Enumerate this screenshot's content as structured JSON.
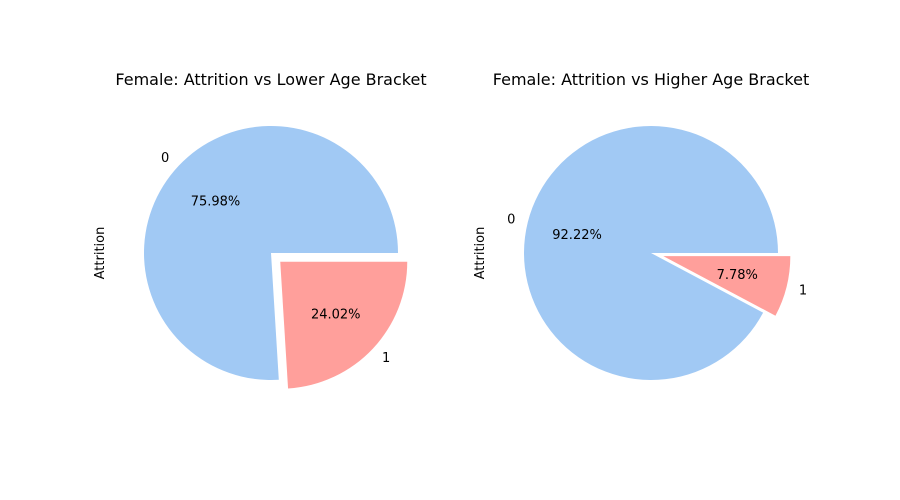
{
  "chart_data": [
    {
      "type": "pie",
      "title": "Female: Attrition vs Lower Age Bracket",
      "ylabel": "Attrition",
      "labels": [
        "0",
        "1"
      ],
      "values": [
        75.98,
        24.02
      ],
      "pct_labels": [
        "75.98%",
        "24.02%"
      ],
      "explode": [
        0,
        0.1
      ],
      "colors": [
        "#a1c9f4",
        "#ff9f9b"
      ]
    },
    {
      "type": "pie",
      "title": "Female: Attrition vs Higher Age Bracket",
      "ylabel": "Attrition",
      "labels": [
        "0",
        "1"
      ],
      "values": [
        92.22,
        7.78
      ],
      "pct_labels": [
        "92.22%",
        "7.78%"
      ],
      "explode": [
        0,
        0.1
      ],
      "colors": [
        "#a1c9f4",
        "#ff9f9b"
      ]
    }
  ]
}
